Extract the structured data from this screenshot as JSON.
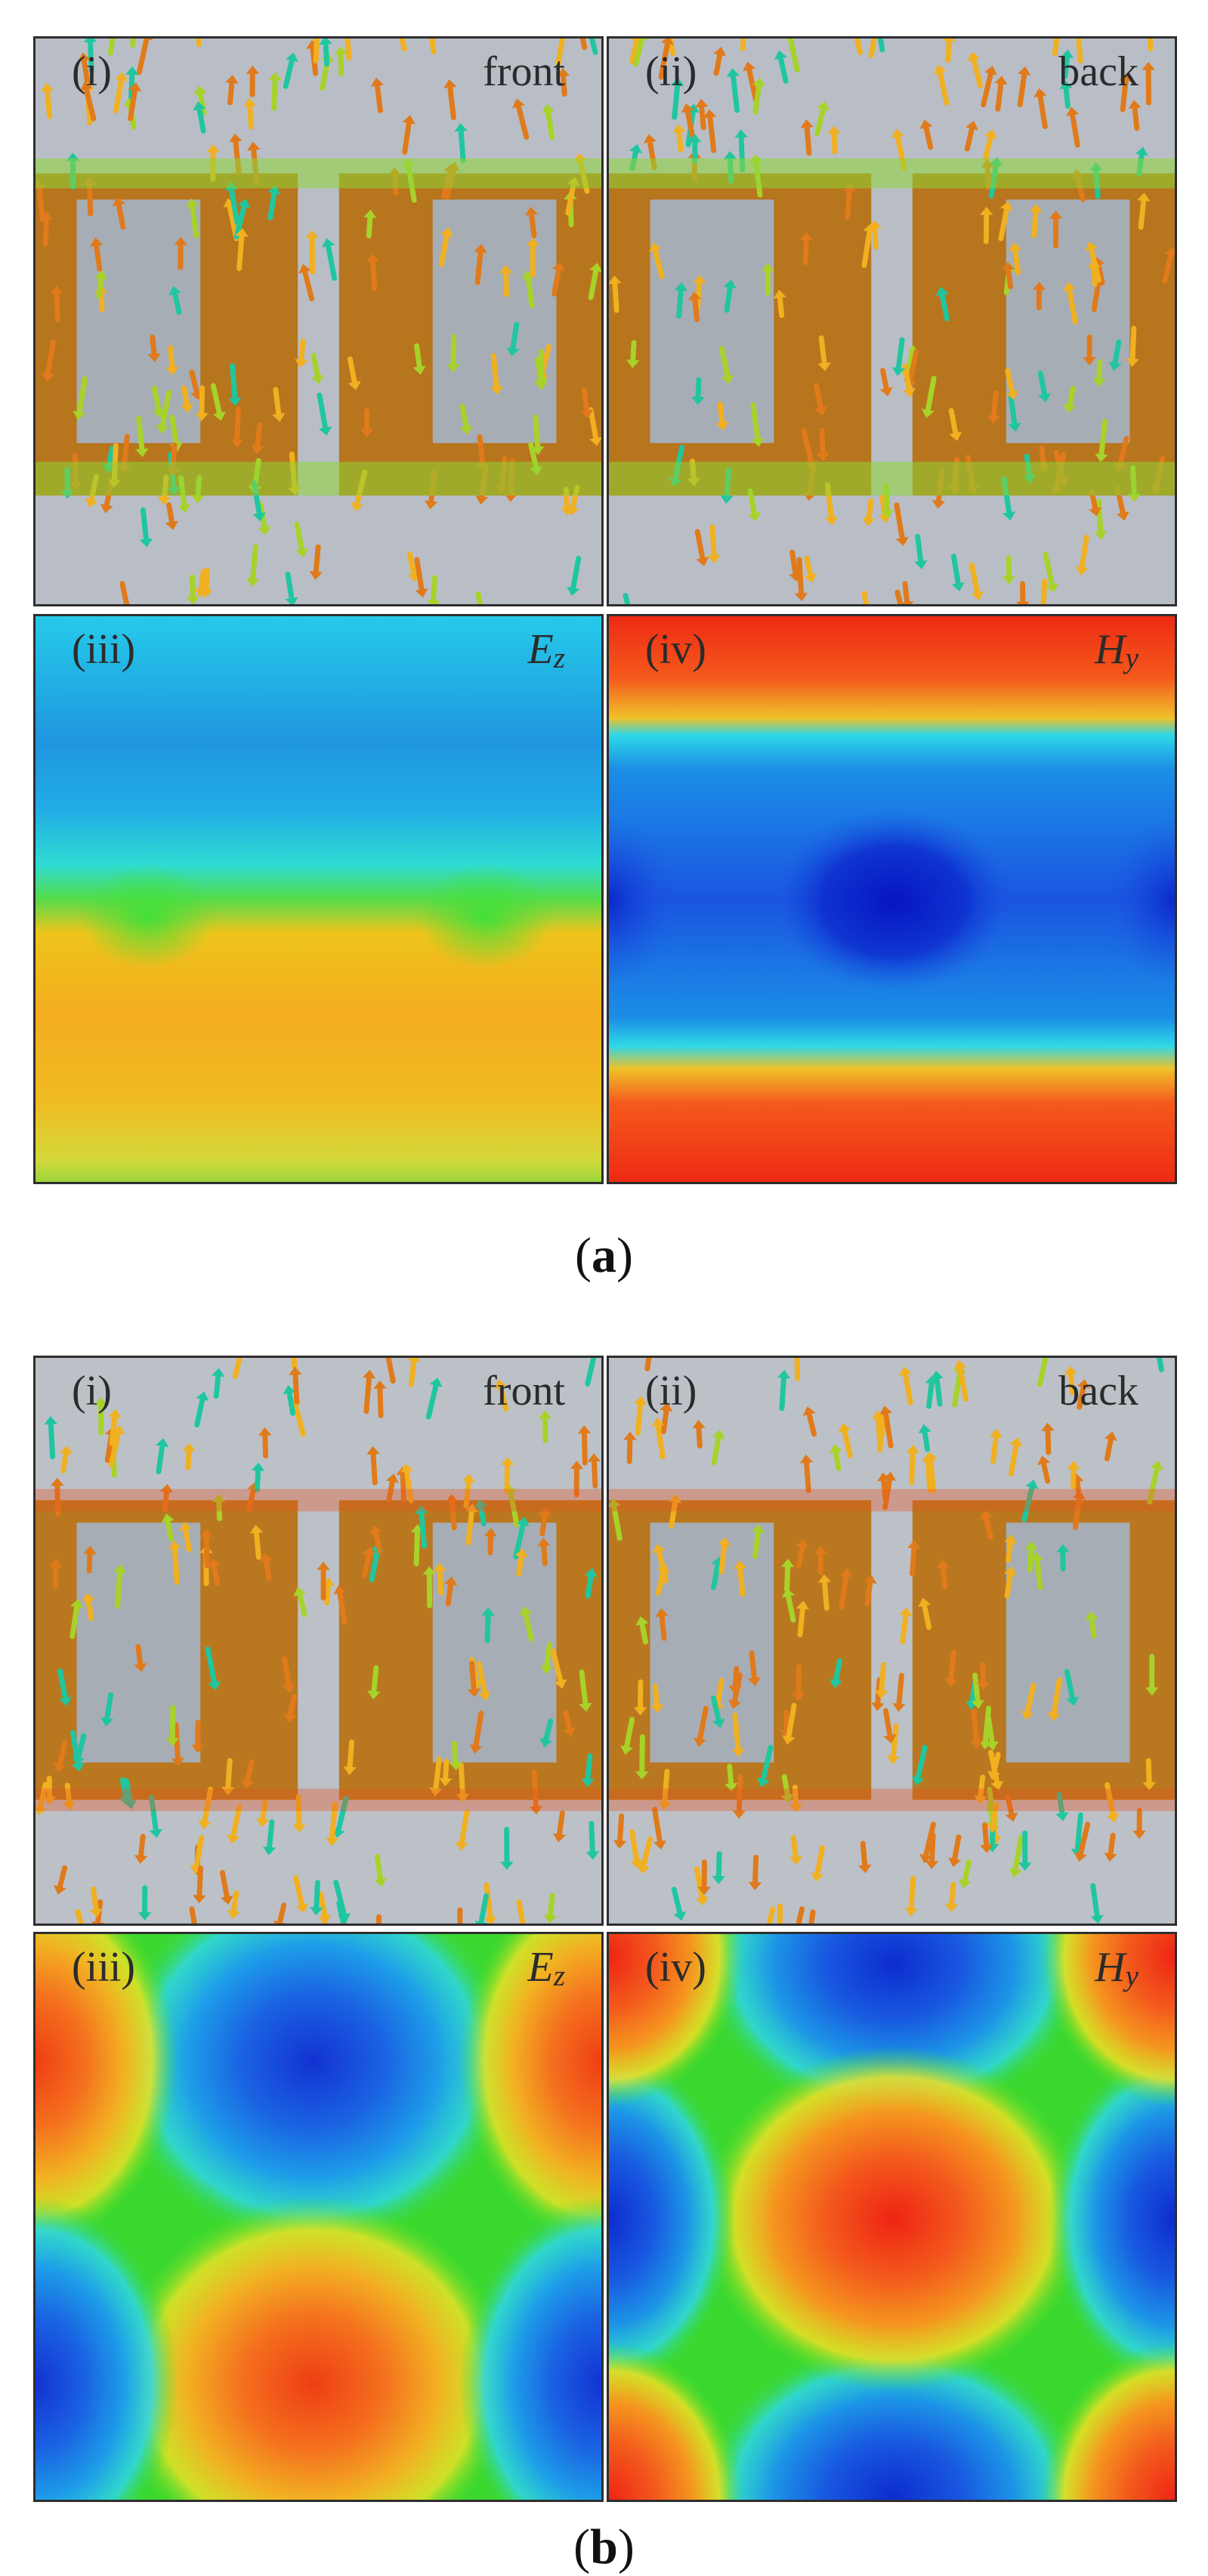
{
  "figure_a": {
    "caption_open": "(",
    "caption_letter": "a",
    "caption_close": ")",
    "panel_i": {
      "label": "(i)",
      "side": "front"
    },
    "panel_ii": {
      "label": "(ii)",
      "side": "back"
    },
    "panel_iii": {
      "label": "(iii)",
      "field_base": "E",
      "field_sub": "z"
    },
    "panel_iv": {
      "label": "(iv)",
      "field_base": "H",
      "field_sub": "y"
    }
  },
  "figure_b": {
    "caption_open": "(",
    "caption_letter": "b",
    "caption_close": ")",
    "panel_i": {
      "label": "(i)",
      "side": "front"
    },
    "panel_ii": {
      "label": "(ii)",
      "side": "back"
    },
    "panel_iii": {
      "label": "(iii)",
      "field_base": "E",
      "field_sub": "z"
    },
    "panel_iv": {
      "label": "(iv)",
      "field_base": "H",
      "field_sub": "y"
    }
  },
  "colors": {
    "background_gray": "#b9bec6",
    "cut_gray": "#a5abb3",
    "arrow_hot": "#e07a1a",
    "arrow_warm": "#f0b020",
    "arrow_mid": "#a7d22a",
    "arrow_cool": "#20c6a0",
    "field_red": "#ef2b14",
    "field_orange": "#f68a1f",
    "field_yellow": "#f2c820",
    "field_green": "#36d92e",
    "field_cyan": "#24c8ea",
    "field_blue": "#1b5fe2",
    "field_deepblue": "#0a1fc9"
  }
}
